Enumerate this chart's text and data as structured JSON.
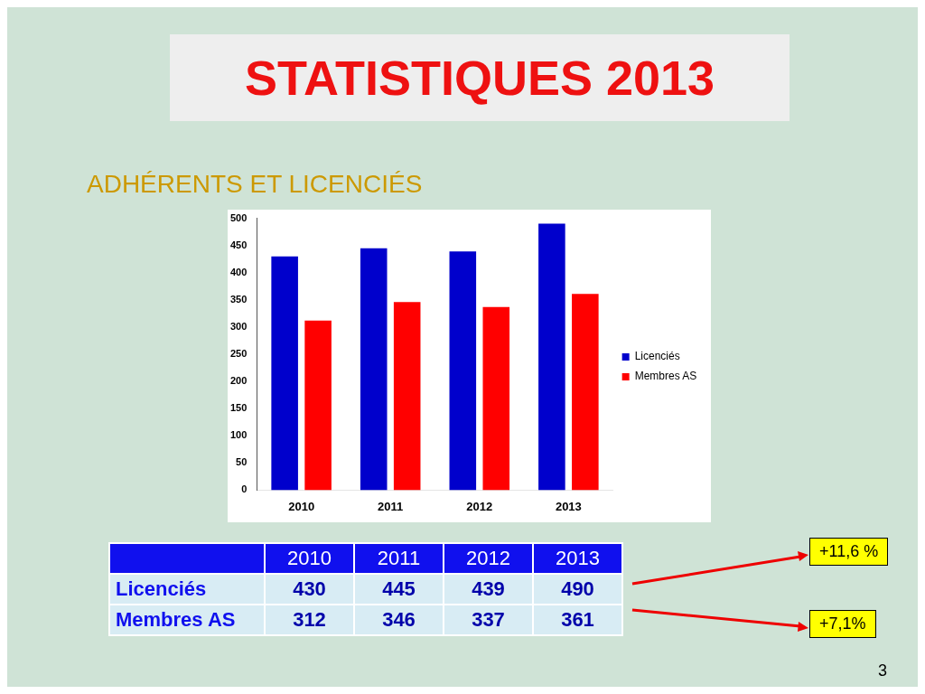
{
  "chart_data": {
    "type": "bar",
    "title": "STATISTIQUES 2013",
    "subtitle": "ADHÉRENTS ET LICENCIÉS",
    "categories": [
      "2010",
      "2011",
      "2012",
      "2013"
    ],
    "series": [
      {
        "name": "Licenciés",
        "color": "#0000cc",
        "values": [
          430,
          445,
          439,
          490
        ]
      },
      {
        "name": "Membres AS",
        "color": "#ff0000",
        "values": [
          312,
          346,
          337,
          361
        ]
      }
    ],
    "ylim": [
      0,
      500
    ],
    "yticks": [
      0,
      50,
      100,
      150,
      200,
      250,
      300,
      350,
      400,
      450,
      500
    ],
    "legend": "right",
    "data_labels": true,
    "annotations": [
      "+11,6 %",
      "+7,1%",
      "3"
    ]
  }
}
